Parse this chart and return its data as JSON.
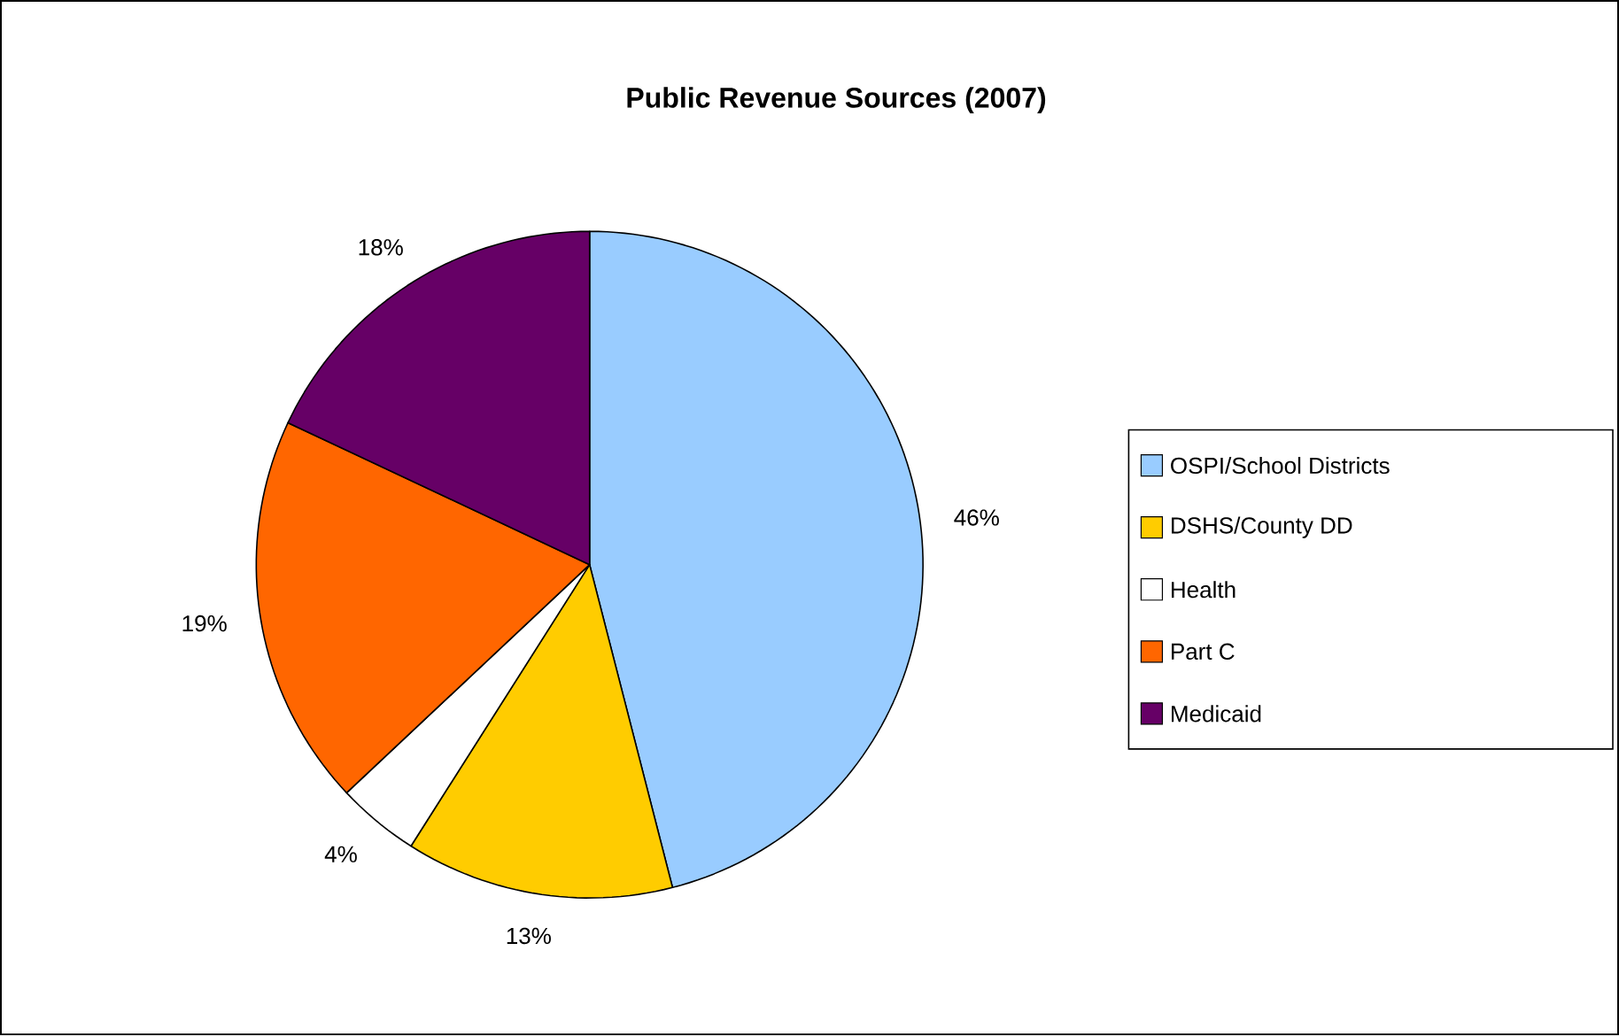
{
  "chart_data": {
    "type": "pie",
    "title": "Public Revenue Sources (2007)",
    "categories": [
      "OSPI/School Districts",
      "DSHS/County DD",
      "Health",
      "Part C",
      "Medicaid"
    ],
    "values": [
      46,
      13,
      4,
      19,
      18
    ],
    "value_labels": [
      "46%",
      "13%",
      "4%",
      "19%",
      "18%"
    ],
    "colors": [
      "#99ccff",
      "#ffcc00",
      "#ffffff",
      "#ff6600",
      "#660066"
    ],
    "legend": "right"
  }
}
